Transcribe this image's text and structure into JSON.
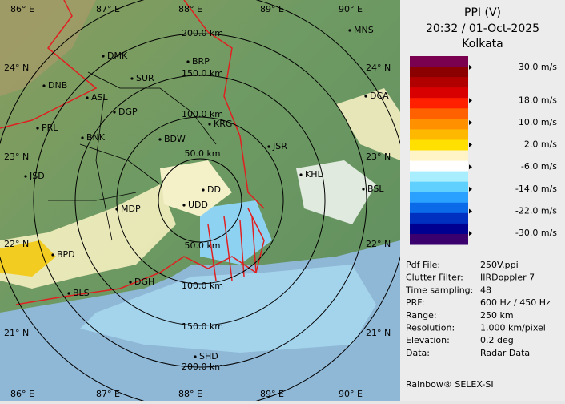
{
  "header": {
    "product": "PPI (V)",
    "timestamp": "20:32 / 01-Oct-2025",
    "station": "Kolkata"
  },
  "map": {
    "longitudes": [
      "86° E",
      "87° E",
      "88° E",
      "89° E",
      "90° E"
    ],
    "latitudes": [
      "24° N",
      "23° N",
      "22° N",
      "21° N"
    ],
    "range_rings": [
      "200.0 km",
      "150.0 km",
      "100.0 km",
      "50.0 km",
      "50.0 km",
      "100.0 km",
      "150.0 km",
      "200.0 km"
    ],
    "cities": [
      "DMK",
      "BRP",
      "MNS",
      "DNB",
      "SUR",
      "ASL",
      "DGP",
      "DCA",
      "PRL",
      "BNK",
      "BDW",
      "KRG",
      "JSR",
      "JSD",
      "KHL",
      "BSL",
      "MDP",
      "DD",
      "UDD",
      "BPD",
      "DGH",
      "BLS",
      "SHD"
    ]
  },
  "colorbar": {
    "range": [
      -34,
      34
    ],
    "colors": [
      "#7a0050",
      "#8b0000",
      "#b00000",
      "#d80000",
      "#ff2000",
      "#ff6000",
      "#ff9000",
      "#ffb800",
      "#ffe000",
      "#fff4c8",
      "#ffffff",
      "#a8eeff",
      "#60d0ff",
      "#2aa0ff",
      "#0a6ae8",
      "#0030c0",
      "#000090",
      "#3a006e"
    ],
    "ticks": [
      {
        "value": 30,
        "label": "30.0 m/s"
      },
      {
        "value": 18,
        "label": "18.0 m/s"
      },
      {
        "value": 10,
        "label": "10.0 m/s"
      },
      {
        "value": 2,
        "label": "2.0 m/s"
      },
      {
        "value": -6,
        "label": "-6.0 m/s"
      },
      {
        "value": -14,
        "label": "-14.0 m/s"
      },
      {
        "value": -22,
        "label": "-22.0 m/s"
      },
      {
        "value": -30,
        "label": "-30.0 m/s"
      }
    ]
  },
  "info": [
    [
      "Pdf File:",
      "250V.ppi"
    ],
    [
      "Clutter Filter:",
      "IIRDoppler 7"
    ],
    [
      "Time sampling:",
      "48"
    ],
    [
      "PRF:",
      "600 Hz / 450 Hz"
    ],
    [
      "Range:",
      "250 km"
    ],
    [
      "Resolution:",
      "1.000 km/pixel"
    ],
    [
      "Elevation:",
      "0.2 deg"
    ],
    [
      "Data:",
      "Radar Data"
    ]
  ],
  "footer": "Rainbow® SELEX-SI"
}
